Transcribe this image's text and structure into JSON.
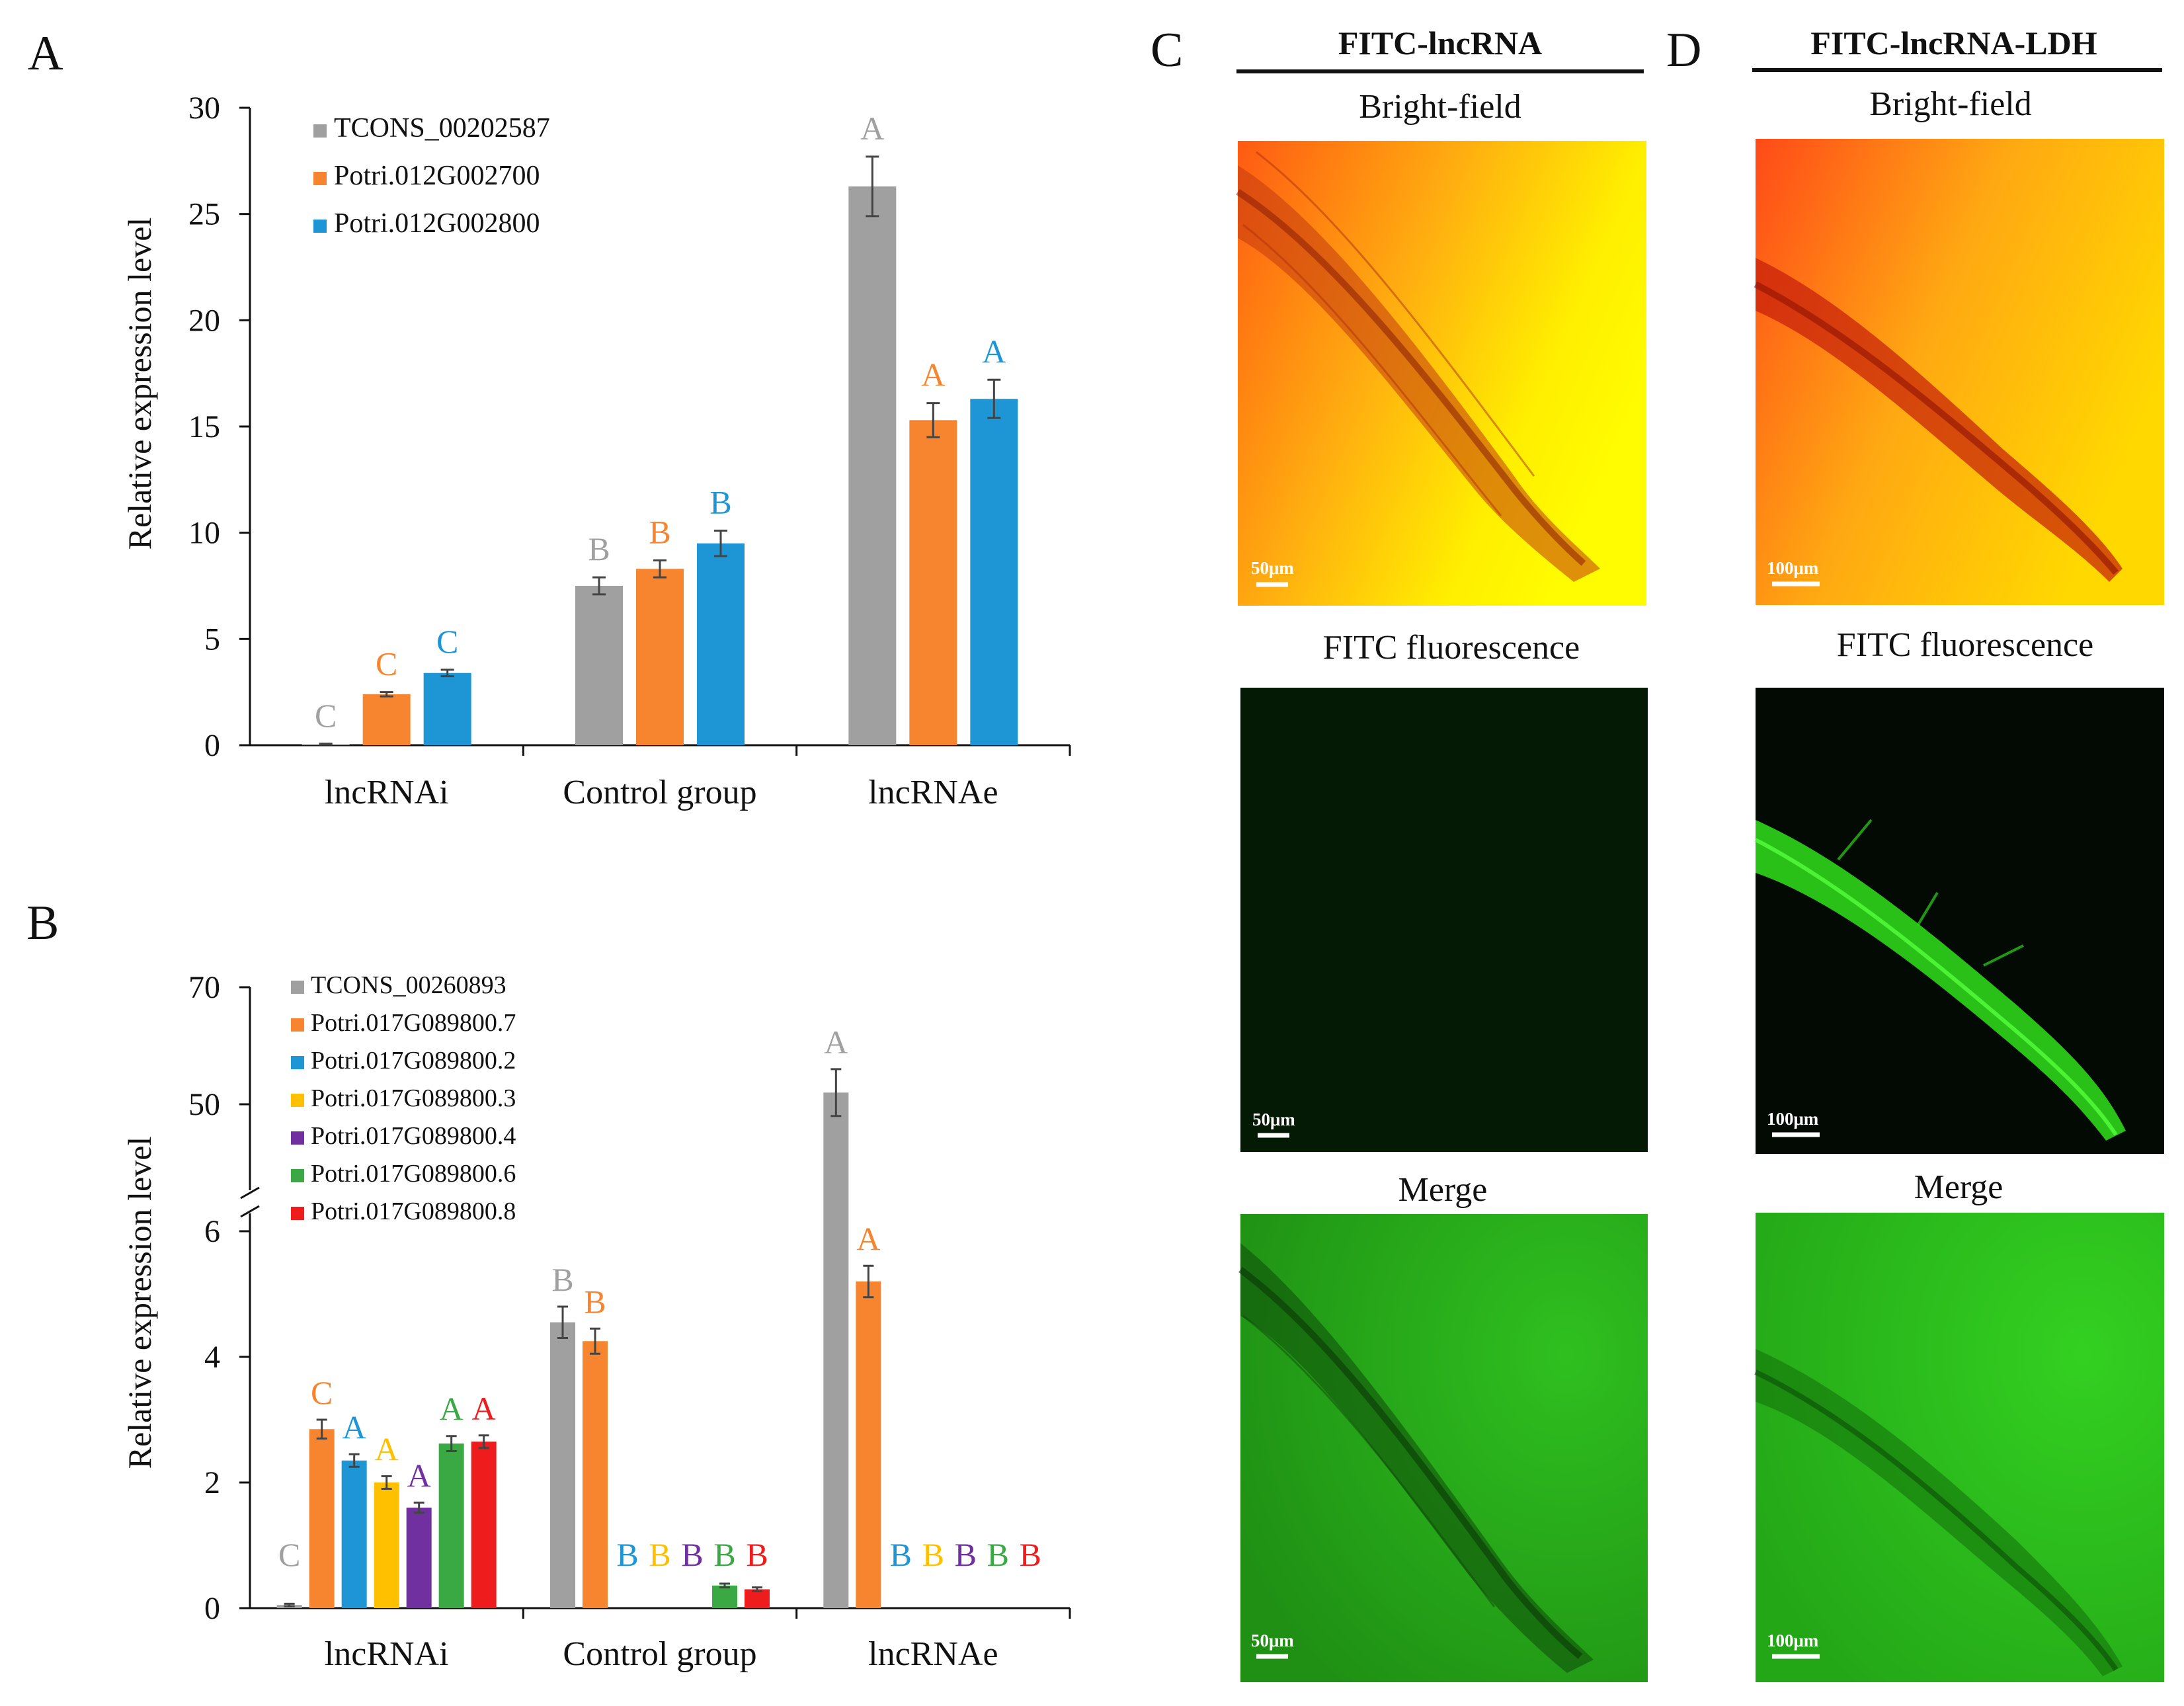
{
  "panels": {
    "A": "A",
    "B": "B",
    "C": "C",
    "D": "D"
  },
  "chart_data": [
    {
      "id": "A",
      "type": "bar",
      "ylabel": "Relative expression level",
      "ylim": [
        0,
        30
      ],
      "yticks": [
        "0",
        "5",
        "10",
        "15",
        "20",
        "25",
        "30"
      ],
      "categories": [
        "lncRNAi",
        "Control group",
        "lncRNAe"
      ],
      "legend_position": "top-left",
      "series": [
        {
          "name": "TCONS_00202587",
          "color": "#a0a0a0",
          "values": [
            0.05,
            7.5,
            26.3
          ],
          "errors": [
            0.02,
            0.4,
            1.4
          ],
          "letters": [
            "C",
            "B",
            "A"
          ]
        },
        {
          "name": "Potri.012G002700",
          "color": "#f7852f",
          "values": [
            2.4,
            8.3,
            15.3
          ],
          "errors": [
            0.1,
            0.4,
            0.8
          ],
          "letters": [
            "C",
            "B",
            "A"
          ]
        },
        {
          "name": "Potri.012G002800",
          "color": "#1e96d6",
          "values": [
            3.4,
            9.5,
            16.3
          ],
          "errors": [
            0.15,
            0.6,
            0.9
          ],
          "letters": [
            "C",
            "B",
            "A"
          ]
        }
      ]
    },
    {
      "id": "B",
      "type": "bar",
      "ylabel": "Relative expression level",
      "axis_break": "between 6 and 50",
      "yticks": [
        "0",
        "2",
        "4",
        "6",
        "50",
        "70"
      ],
      "categories": [
        "lncRNAi",
        "Control group",
        "lncRNAe"
      ],
      "legend_position": "top-left",
      "series": [
        {
          "name": "TCONS_00260893",
          "color": "#a0a0a0",
          "values": [
            0.05,
            4.55,
            52.0
          ],
          "errors": [
            0.02,
            0.25,
            4.0
          ],
          "letters": [
            "C",
            "B",
            "A"
          ]
        },
        {
          "name": "Potri.017G089800.7",
          "color": "#f7852f",
          "values": [
            2.85,
            4.25,
            5.2
          ],
          "errors": [
            0.15,
            0.2,
            0.25
          ],
          "letters": [
            "C",
            "B",
            "A"
          ]
        },
        {
          "name": "Potri.017G089800.2",
          "color": "#1e96d6",
          "values": [
            2.35,
            0,
            0
          ],
          "errors": [
            0.1,
            0,
            0
          ],
          "letters": [
            "A",
            "B",
            "B"
          ]
        },
        {
          "name": "Potri.017G089800.3",
          "color": "#ffc000",
          "values": [
            2.0,
            0,
            0
          ],
          "errors": [
            0.1,
            0,
            0
          ],
          "letters": [
            "A",
            "B",
            "B"
          ]
        },
        {
          "name": "Potri.017G089800.4",
          "color": "#7030a0",
          "values": [
            1.6,
            0,
            0
          ],
          "errors": [
            0.08,
            0,
            0
          ],
          "letters": [
            "A",
            "B",
            "B"
          ]
        },
        {
          "name": "Potri.017G089800.6",
          "color": "#3aa843",
          "values": [
            2.62,
            0.36,
            0
          ],
          "errors": [
            0.12,
            0.03,
            0
          ],
          "letters": [
            "A",
            "B",
            "B"
          ]
        },
        {
          "name": "Potri.017G089800.8",
          "color": "#ee1c1c",
          "values": [
            2.65,
            0.3,
            0
          ],
          "errors": [
            0.1,
            0.03,
            0
          ],
          "letters": [
            "A",
            "B",
            "B"
          ]
        }
      ]
    }
  ],
  "micrographs": {
    "C": {
      "title": "FITC-lncRNA",
      "rows": [
        "Bright-field",
        "FITC fluorescence",
        "Merge"
      ],
      "scalebar": "50μm"
    },
    "D": {
      "title": "FITC-lncRNA-LDH",
      "rows": [
        "Bright-field",
        "FITC fluorescence",
        "Merge"
      ],
      "scalebar": "100μm"
    }
  }
}
